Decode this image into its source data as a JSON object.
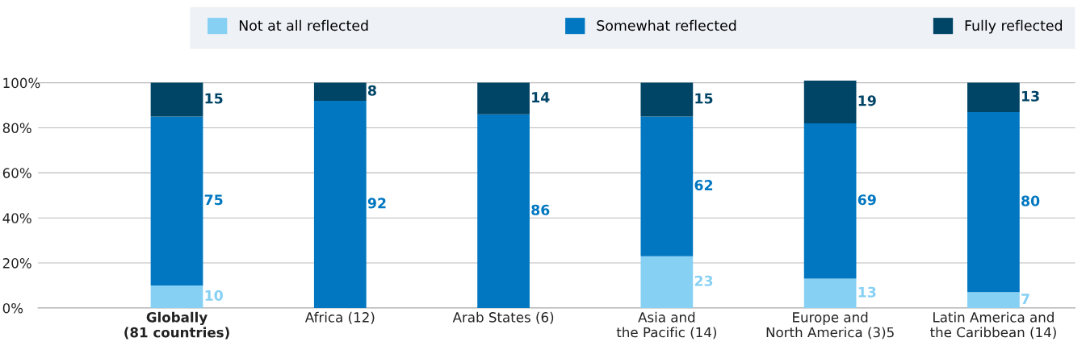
{
  "chart_data": {
    "type": "bar",
    "stacked": true,
    "categories": [
      "Globally\n(81 countries)",
      "Africa (12)",
      "Arab States (6)",
      "Asia and\nthe Pacific (14)",
      "Europe and\nNorth America (3)5",
      "Latin America and\nthe Caribbean (14)"
    ],
    "series": [
      {
        "name": "Not at all reflected",
        "color": "#86d0f4",
        "values": [
          10,
          0,
          0,
          23,
          13,
          7
        ],
        "value_labels": [
          "10",
          null,
          null,
          "23",
          "13",
          "7"
        ]
      },
      {
        "name": "Somewhat reflected",
        "color": "#0077c0",
        "values": [
          75,
          92,
          86,
          62,
          69,
          80
        ],
        "value_labels": [
          "75",
          "92",
          "86",
          "62",
          "69",
          "80"
        ]
      },
      {
        "name": "Fully reflected",
        "color": "#004466",
        "values": [
          15,
          8,
          14,
          15,
          19,
          13
        ],
        "value_labels": [
          "15",
          "8",
          "14",
          "15",
          "19",
          "13"
        ]
      }
    ],
    "ylim": [
      0,
      101
    ],
    "yticks": [
      {
        "value": 0,
        "label": "0%"
      },
      {
        "value": 20,
        "label": "20%"
      },
      {
        "value": 40,
        "label": "40%"
      },
      {
        "value": 60,
        "label": "60%"
      },
      {
        "value": 80,
        "label": "80%"
      },
      {
        "value": 100,
        "label": "100%"
      }
    ],
    "grid": "y",
    "legend": "top"
  }
}
